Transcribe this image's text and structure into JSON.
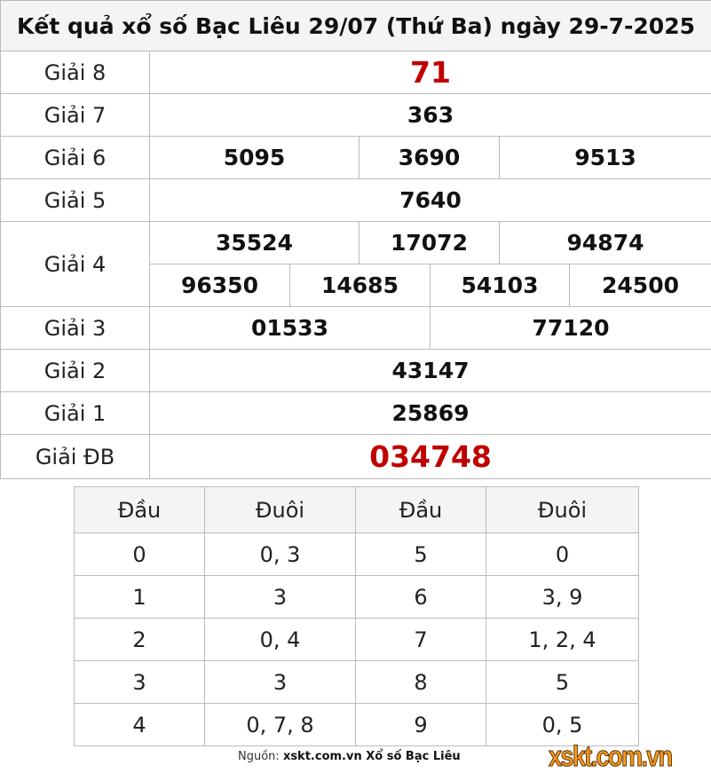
{
  "title": "Kết quả xổ số Bạc Liêu 29/07 (Thứ Ba) ngày 29-7-2025",
  "prizes": {
    "g8": {
      "label": "Giải 8",
      "values": [
        "71"
      ]
    },
    "g7": {
      "label": "Giải 7",
      "values": [
        "363"
      ]
    },
    "g6": {
      "label": "Giải 6",
      "values": [
        "5095",
        "3690",
        "9513"
      ]
    },
    "g5": {
      "label": "Giải 5",
      "values": [
        "7640"
      ]
    },
    "g4": {
      "label": "Giải 4",
      "values": [
        "35524",
        "17072",
        "94874",
        "96350",
        "14685",
        "54103",
        "24500"
      ]
    },
    "g3": {
      "label": "Giải 3",
      "values": [
        "01533",
        "77120"
      ]
    },
    "g2": {
      "label": "Giải 2",
      "values": [
        "43147"
      ]
    },
    "g1": {
      "label": "Giải 1",
      "values": [
        "25869"
      ]
    },
    "db": {
      "label": "Giải ĐB",
      "values": [
        "034748"
      ]
    }
  },
  "loto": {
    "headers": [
      "Đầu",
      "Đuôi",
      "Đầu",
      "Đuôi"
    ],
    "rows": [
      [
        "0",
        "0, 3",
        "5",
        "0"
      ],
      [
        "1",
        "3",
        "6",
        "3, 9"
      ],
      [
        "2",
        "0, 4",
        "7",
        "1, 2, 4"
      ],
      [
        "3",
        "3",
        "8",
        "5"
      ],
      [
        "4",
        "0, 7, 8",
        "9",
        "0, 5"
      ]
    ]
  },
  "source": {
    "prefix": "Nguồn:",
    "text": "xskt.com.vn Xổ số Bạc Liêu"
  },
  "logo_text": "xskt.com.vn",
  "colors": {
    "highlight": "#c00000",
    "logo": "#f39a1c"
  }
}
